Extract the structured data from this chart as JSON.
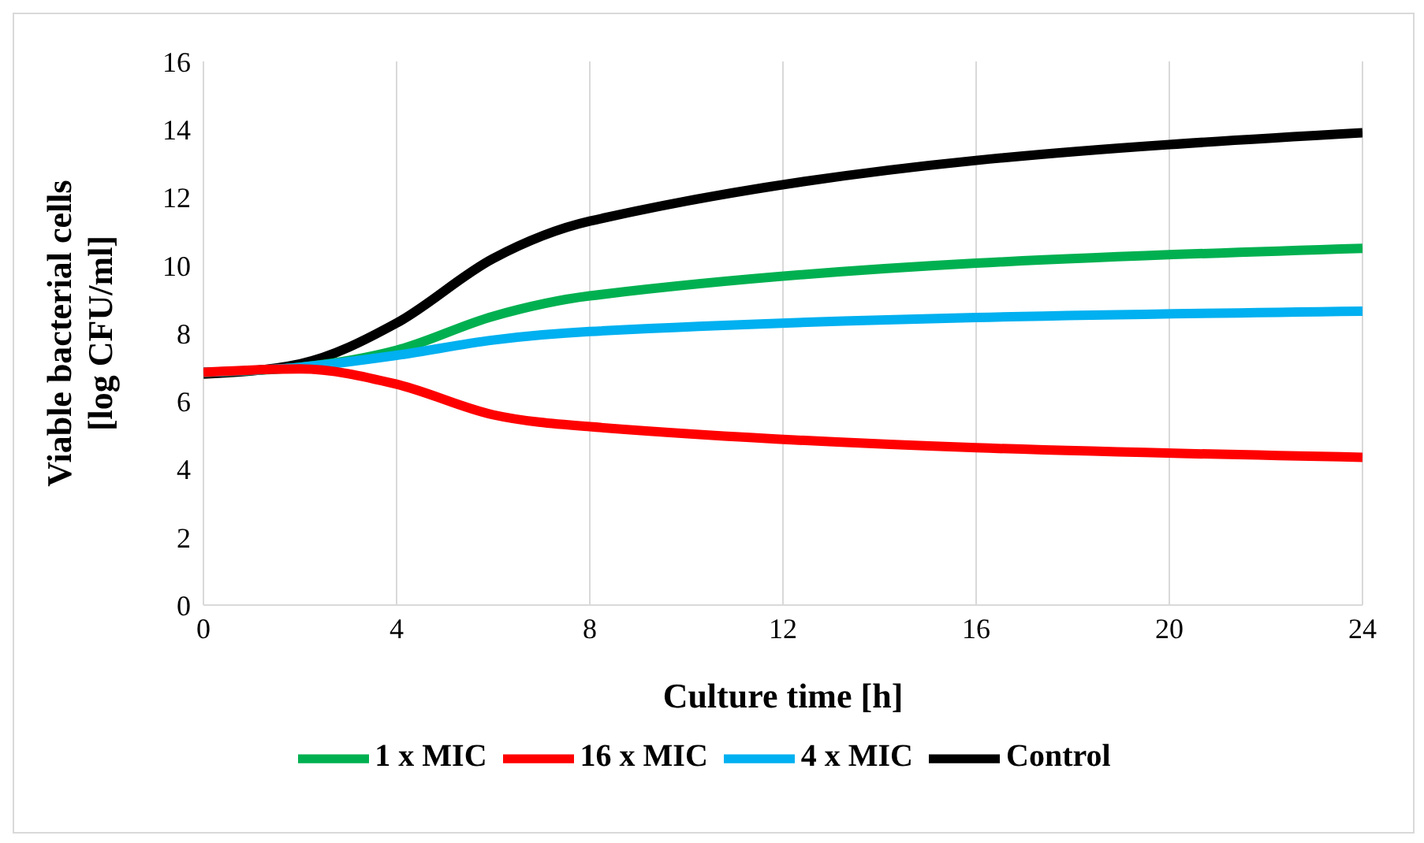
{
  "chart_data": {
    "type": "line",
    "xlabel": "Culture time [h]",
    "ylabel": "Viable bacterial cells [log CFU/ml]",
    "x": [
      0,
      2,
      4,
      6,
      8,
      24
    ],
    "series": [
      {
        "name": "Control",
        "color": "#000000",
        "values": [
          6.8,
          7.1,
          8.3,
          10.2,
          11.3,
          13.9
        ]
      },
      {
        "name": "1 x MIC",
        "color": "#00b050",
        "values": [
          6.85,
          7.0,
          7.5,
          8.5,
          9.1,
          10.5
        ]
      },
      {
        "name": "4 x MIC",
        "color": "#00b0f0",
        "values": [
          6.85,
          7.0,
          7.35,
          7.8,
          8.05,
          8.65
        ]
      },
      {
        "name": "16 x MIC",
        "color": "#ff0000",
        "values": [
          6.85,
          6.95,
          6.5,
          5.6,
          5.25,
          4.35
        ]
      }
    ],
    "xlim": [
      0,
      24
    ],
    "xticks": [
      0,
      4,
      8,
      12,
      16,
      20,
      24
    ],
    "ylim": [
      0,
      16
    ],
    "yticks": [
      0,
      2,
      4,
      6,
      8,
      10,
      12,
      14,
      16
    ],
    "grid": "x",
    "legend": "bottom",
    "marker": "none",
    "line_style": "solid"
  }
}
